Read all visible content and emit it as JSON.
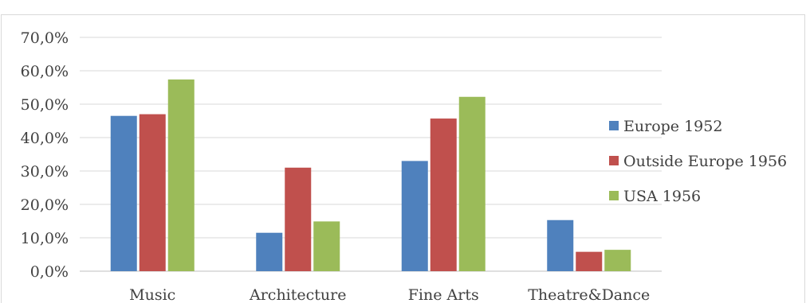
{
  "chart_data": {
    "type": "bar",
    "categories": [
      "Music",
      "Architecture",
      "Fine Arts",
      "Theatre&Dance"
    ],
    "series": [
      {
        "name": "Europe 1952",
        "color": "#4f81bd",
        "values": [
          46.5,
          11.5,
          33.0,
          15.3
        ]
      },
      {
        "name": "Outside Europe 1956",
        "color": "#c0504d",
        "values": [
          47.0,
          31.0,
          45.7,
          5.8
        ]
      },
      {
        "name": "USA 1956",
        "color": "#9bbb59",
        "values": [
          57.4,
          14.9,
          52.2,
          6.4
        ]
      }
    ],
    "ylim": [
      0,
      70
    ],
    "yticks": [
      "0,0%",
      "10,0%",
      "20,0%",
      "30,0%",
      "40,0%",
      "50,0%",
      "60,0%",
      "70,0%"
    ],
    "grid": true,
    "legend_position": "right"
  }
}
